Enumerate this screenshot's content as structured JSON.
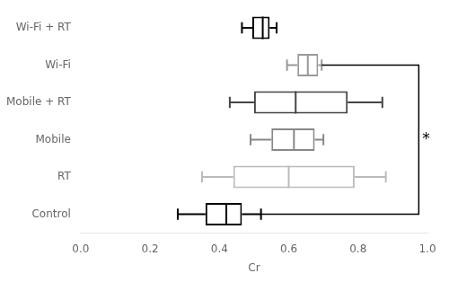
{
  "chart_data": {
    "type": "box",
    "orientation": "horizontal",
    "categories": [
      "Wi-Fi + RT",
      "Wi-Fi",
      "Mobile + RT",
      "Mobile",
      "RT",
      "Control"
    ],
    "values": [
      {
        "min": 0.465,
        "q1": 0.495,
        "median": 0.525,
        "q3": 0.545,
        "max": 0.565
      },
      {
        "min": 0.595,
        "q1": 0.625,
        "median": 0.655,
        "q3": 0.685,
        "max": 0.695
      },
      {
        "min": 0.43,
        "q1": 0.5,
        "median": 0.62,
        "q3": 0.77,
        "max": 0.87
      },
      {
        "min": 0.49,
        "q1": 0.55,
        "median": 0.615,
        "q3": 0.675,
        "max": 0.7
      },
      {
        "min": 0.35,
        "q1": 0.44,
        "median": 0.6,
        "q3": 0.79,
        "max": 0.88
      },
      {
        "min": 0.28,
        "q1": 0.36,
        "median": 0.42,
        "q3": 0.465,
        "max": 0.52
      }
    ],
    "colors": [
      "black",
      "#999999",
      "#444444",
      "#888888",
      "#bbbbbb",
      "black"
    ],
    "xlabel": "Cr",
    "xlim": [
      0,
      1
    ],
    "xticks": [
      {
        "value": 0,
        "label": "0.0"
      },
      0.2,
      0.4,
      0.6,
      0.8,
      {
        "value": 1,
        "label": "1.0"
      }
    ],
    "annotations": [
      {
        "text": "*",
        "categories": [
          "Wi-Fi",
          "Control"
        ],
        "x": 0.975
      }
    ],
    "grid": false
  }
}
